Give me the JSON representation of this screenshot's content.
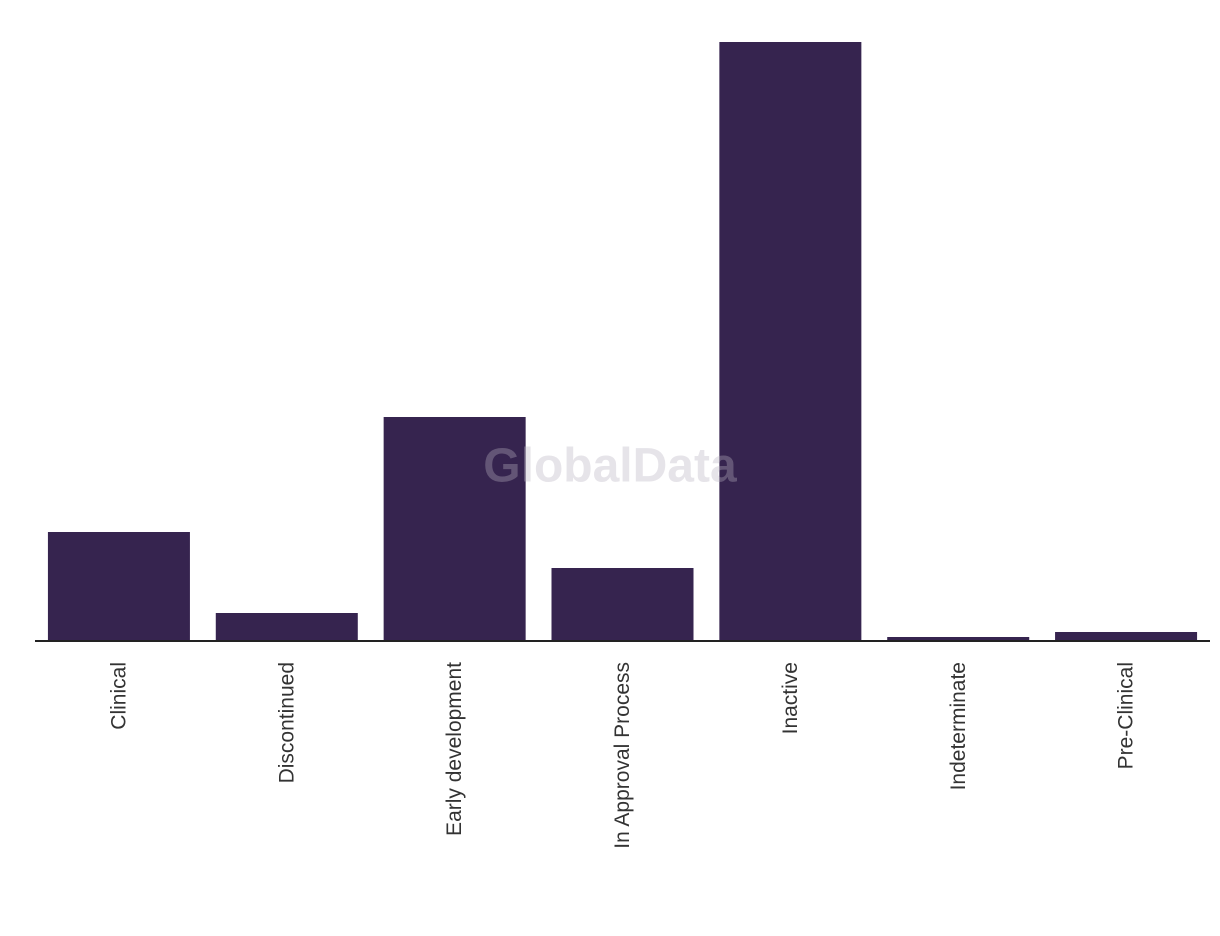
{
  "chart_data": {
    "type": "bar",
    "watermark": "GlobalData",
    "categories": [
      "Clinical",
      "Discontinued",
      "Early development",
      "In Approval Process",
      "Inactive",
      "Indeterminate",
      "Pre-Clinical"
    ],
    "values": [
      109,
      28,
      224,
      73,
      599,
      4,
      9
    ],
    "color": "#36244f"
  }
}
